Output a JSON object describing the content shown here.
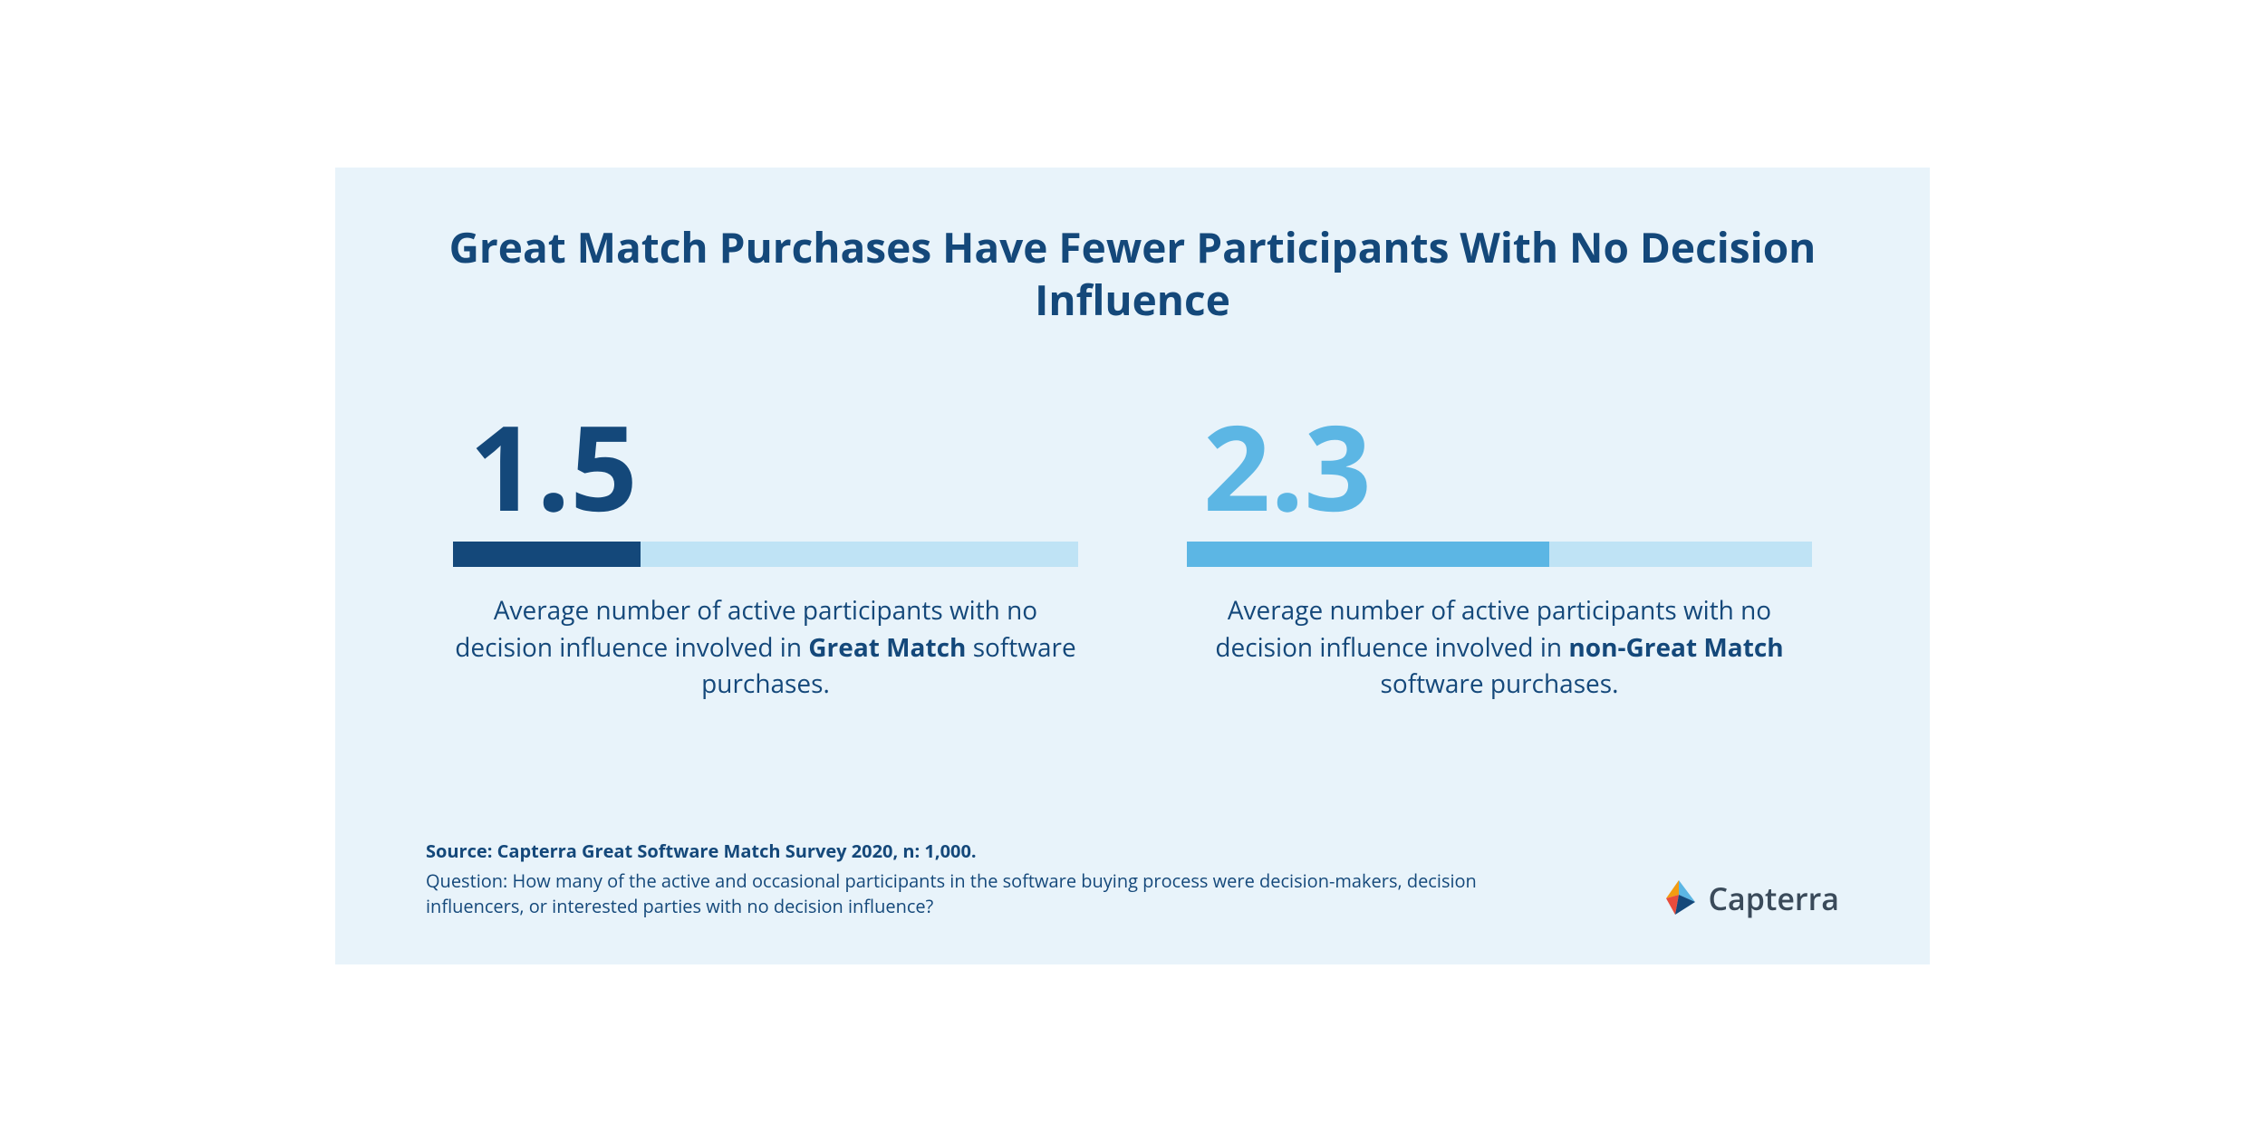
{
  "card": {
    "background_color": "#e8f3fa",
    "title": "Great Match Purchases Have Fewer Participants With No Decision Influence",
    "title_color": "#14487a",
    "title_fontsize": 46
  },
  "metrics": [
    {
      "value": "1.5",
      "value_color": "#14487a",
      "value_fontsize": 130,
      "bar_fill_pct": 30,
      "bar_fill_color": "#14487a",
      "bar_track_color": "#bfe3f5",
      "desc_prefix": "Average number of active participants with no decision influence involved in ",
      "desc_bold": "Great Match",
      "desc_suffix": " software purchases.",
      "desc_color": "#14487a",
      "desc_fontsize": 28
    },
    {
      "value": "2.3",
      "value_color": "#5cb6e4",
      "value_fontsize": 130,
      "bar_fill_pct": 58,
      "bar_fill_color": "#5cb6e4",
      "bar_track_color": "#bfe3f5",
      "desc_prefix": "Average number of active participants with no decision influence involved in ",
      "desc_bold": "non-Great Match",
      "desc_suffix": " software purchases.",
      "desc_color": "#14487a",
      "desc_fontsize": 28
    }
  ],
  "footer": {
    "source": "Source: Capterra Great Software Match Survey 2020, n: 1,000.",
    "question": "Question: How many of the active and occasional participants in the software buying process were decision-makers, decision influencers, or interested parties with no decision influence?",
    "text_color": "#14487a",
    "source_fontsize": 20,
    "question_fontsize": 20
  },
  "logo": {
    "text": "Capterra",
    "text_color": "#3a4a5a",
    "text_fontsize": 34,
    "arrow_colors": {
      "top": "#f39c12",
      "left": "#e74c3c",
      "right_light": "#5cb6e4",
      "right_dark": "#14487a"
    }
  }
}
